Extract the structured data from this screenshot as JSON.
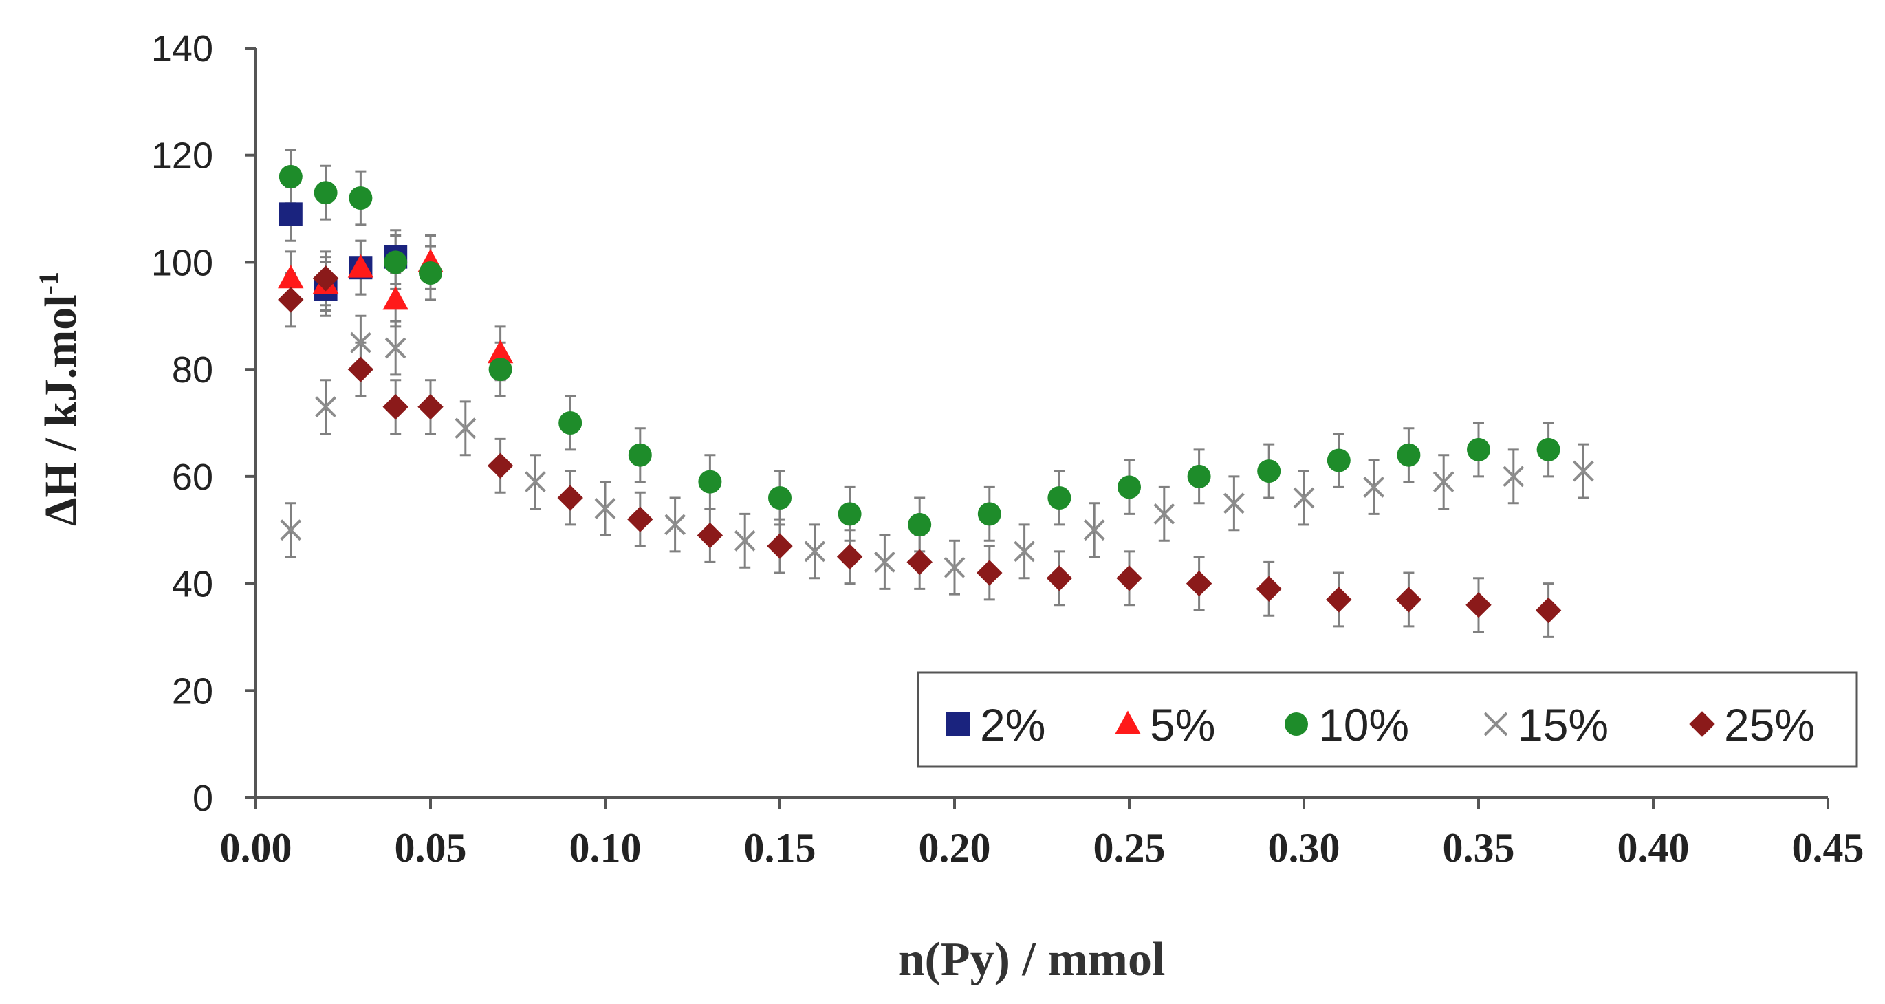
{
  "chart_data": {
    "type": "scatter",
    "title": "",
    "xlabel": "n(Py) / mmol",
    "ylabel": "ΔH / kJ.mol",
    "ylabel_superscript": "-1",
    "xlim": [
      0.0,
      0.45
    ],
    "ylim": [
      0,
      140
    ],
    "x_ticks": [
      "0.00",
      "0.05",
      "0.10",
      "0.15",
      "0.20",
      "0.25",
      "0.30",
      "0.35",
      "0.40",
      "0.45"
    ],
    "y_ticks": [
      "0",
      "20",
      "40",
      "60",
      "80",
      "100",
      "120",
      "140"
    ],
    "legend_position": "bottom-right",
    "series": [
      {
        "name": "2%",
        "marker": "square",
        "color": "#1a237e",
        "x": [
          0.01,
          0.02,
          0.03,
          0.04
        ],
        "y": [
          109,
          95,
          99,
          101
        ]
      },
      {
        "name": "5%",
        "marker": "triangle",
        "color": "#ff1a1a",
        "x": [
          0.01,
          0.02,
          0.03,
          0.04,
          0.05,
          0.07
        ],
        "y": [
          97,
          96,
          99,
          93,
          100,
          83
        ]
      },
      {
        "name": "10%",
        "marker": "circle",
        "color": "#1e8c2a",
        "x": [
          0.01,
          0.02,
          0.03,
          0.04,
          0.05,
          0.07,
          0.09,
          0.11,
          0.13,
          0.15,
          0.17,
          0.19,
          0.21,
          0.23,
          0.25,
          0.27,
          0.29,
          0.31,
          0.33,
          0.35,
          0.37
        ],
        "y": [
          116,
          113,
          112,
          100,
          98,
          80,
          70,
          64,
          59,
          56,
          53,
          51,
          53,
          56,
          58,
          60,
          61,
          63,
          64,
          65,
          65
        ]
      },
      {
        "name": "15%",
        "marker": "x",
        "color": "#8c8c8c",
        "x": [
          0.01,
          0.02,
          0.03,
          0.04,
          0.06,
          0.08,
          0.1,
          0.12,
          0.14,
          0.16,
          0.18,
          0.2,
          0.22,
          0.24,
          0.26,
          0.28,
          0.3,
          0.32,
          0.34,
          0.36,
          0.38
        ],
        "y": [
          50,
          73,
          85,
          84,
          69,
          59,
          54,
          51,
          48,
          46,
          44,
          43,
          46,
          50,
          53,
          55,
          56,
          58,
          59,
          60,
          61
        ]
      },
      {
        "name": "25%",
        "marker": "diamond",
        "color": "#8b1a1a",
        "x": [
          0.01,
          0.02,
          0.03,
          0.04,
          0.05,
          0.07,
          0.09,
          0.11,
          0.13,
          0.15,
          0.17,
          0.19,
          0.21,
          0.23,
          0.25,
          0.27,
          0.29,
          0.31,
          0.33,
          0.35,
          0.37
        ],
        "y": [
          93,
          97,
          80,
          73,
          73,
          62,
          56,
          52,
          49,
          47,
          45,
          44,
          42,
          41,
          41,
          40,
          39,
          37,
          37,
          36,
          35
        ]
      }
    ],
    "error_bar": 5
  }
}
